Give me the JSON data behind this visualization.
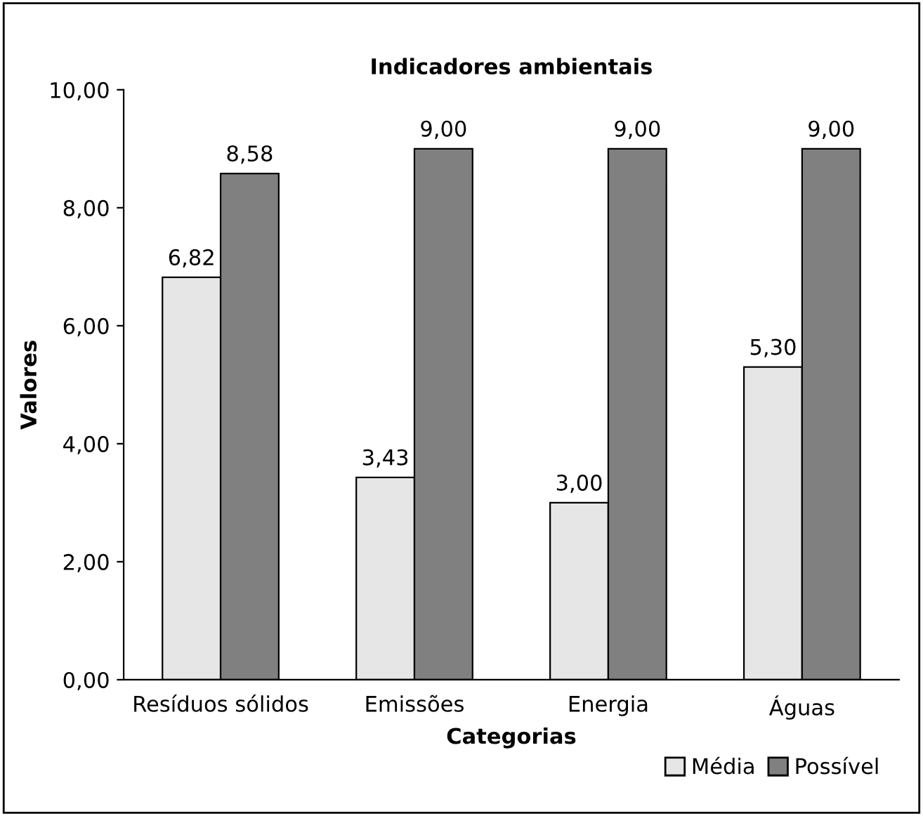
{
  "chart_data": {
    "type": "bar",
    "title": "Indicadores ambientais",
    "xlabel": "Categorias",
    "ylabel": "Valores",
    "categories": [
      "Resíduos sólidos",
      "Emissões",
      "Energia",
      "Águas"
    ],
    "series": [
      {
        "name": "Média",
        "color": "#e6e6e6",
        "values": [
          6.82,
          3.43,
          3.0,
          5.3
        ],
        "value_labels": [
          "6,82",
          "3,43",
          "3,00",
          "5,30"
        ]
      },
      {
        "name": "Possível",
        "color": "#808080",
        "values": [
          8.58,
          9.0,
          9.0,
          9.0
        ],
        "value_labels": [
          "8,58",
          "9,00",
          "9,00",
          "9,00"
        ]
      }
    ],
    "ylim": [
      0,
      10
    ],
    "yticks": [
      {
        "value": 0,
        "label": "0,00"
      },
      {
        "value": 2,
        "label": "2,00"
      },
      {
        "value": 4,
        "label": "4,00"
      },
      {
        "value": 6,
        "label": "6,00"
      },
      {
        "value": 8,
        "label": "8,00"
      },
      {
        "value": 10,
        "label": "10,00"
      }
    ],
    "grid": false,
    "legend": "bottom right"
  }
}
